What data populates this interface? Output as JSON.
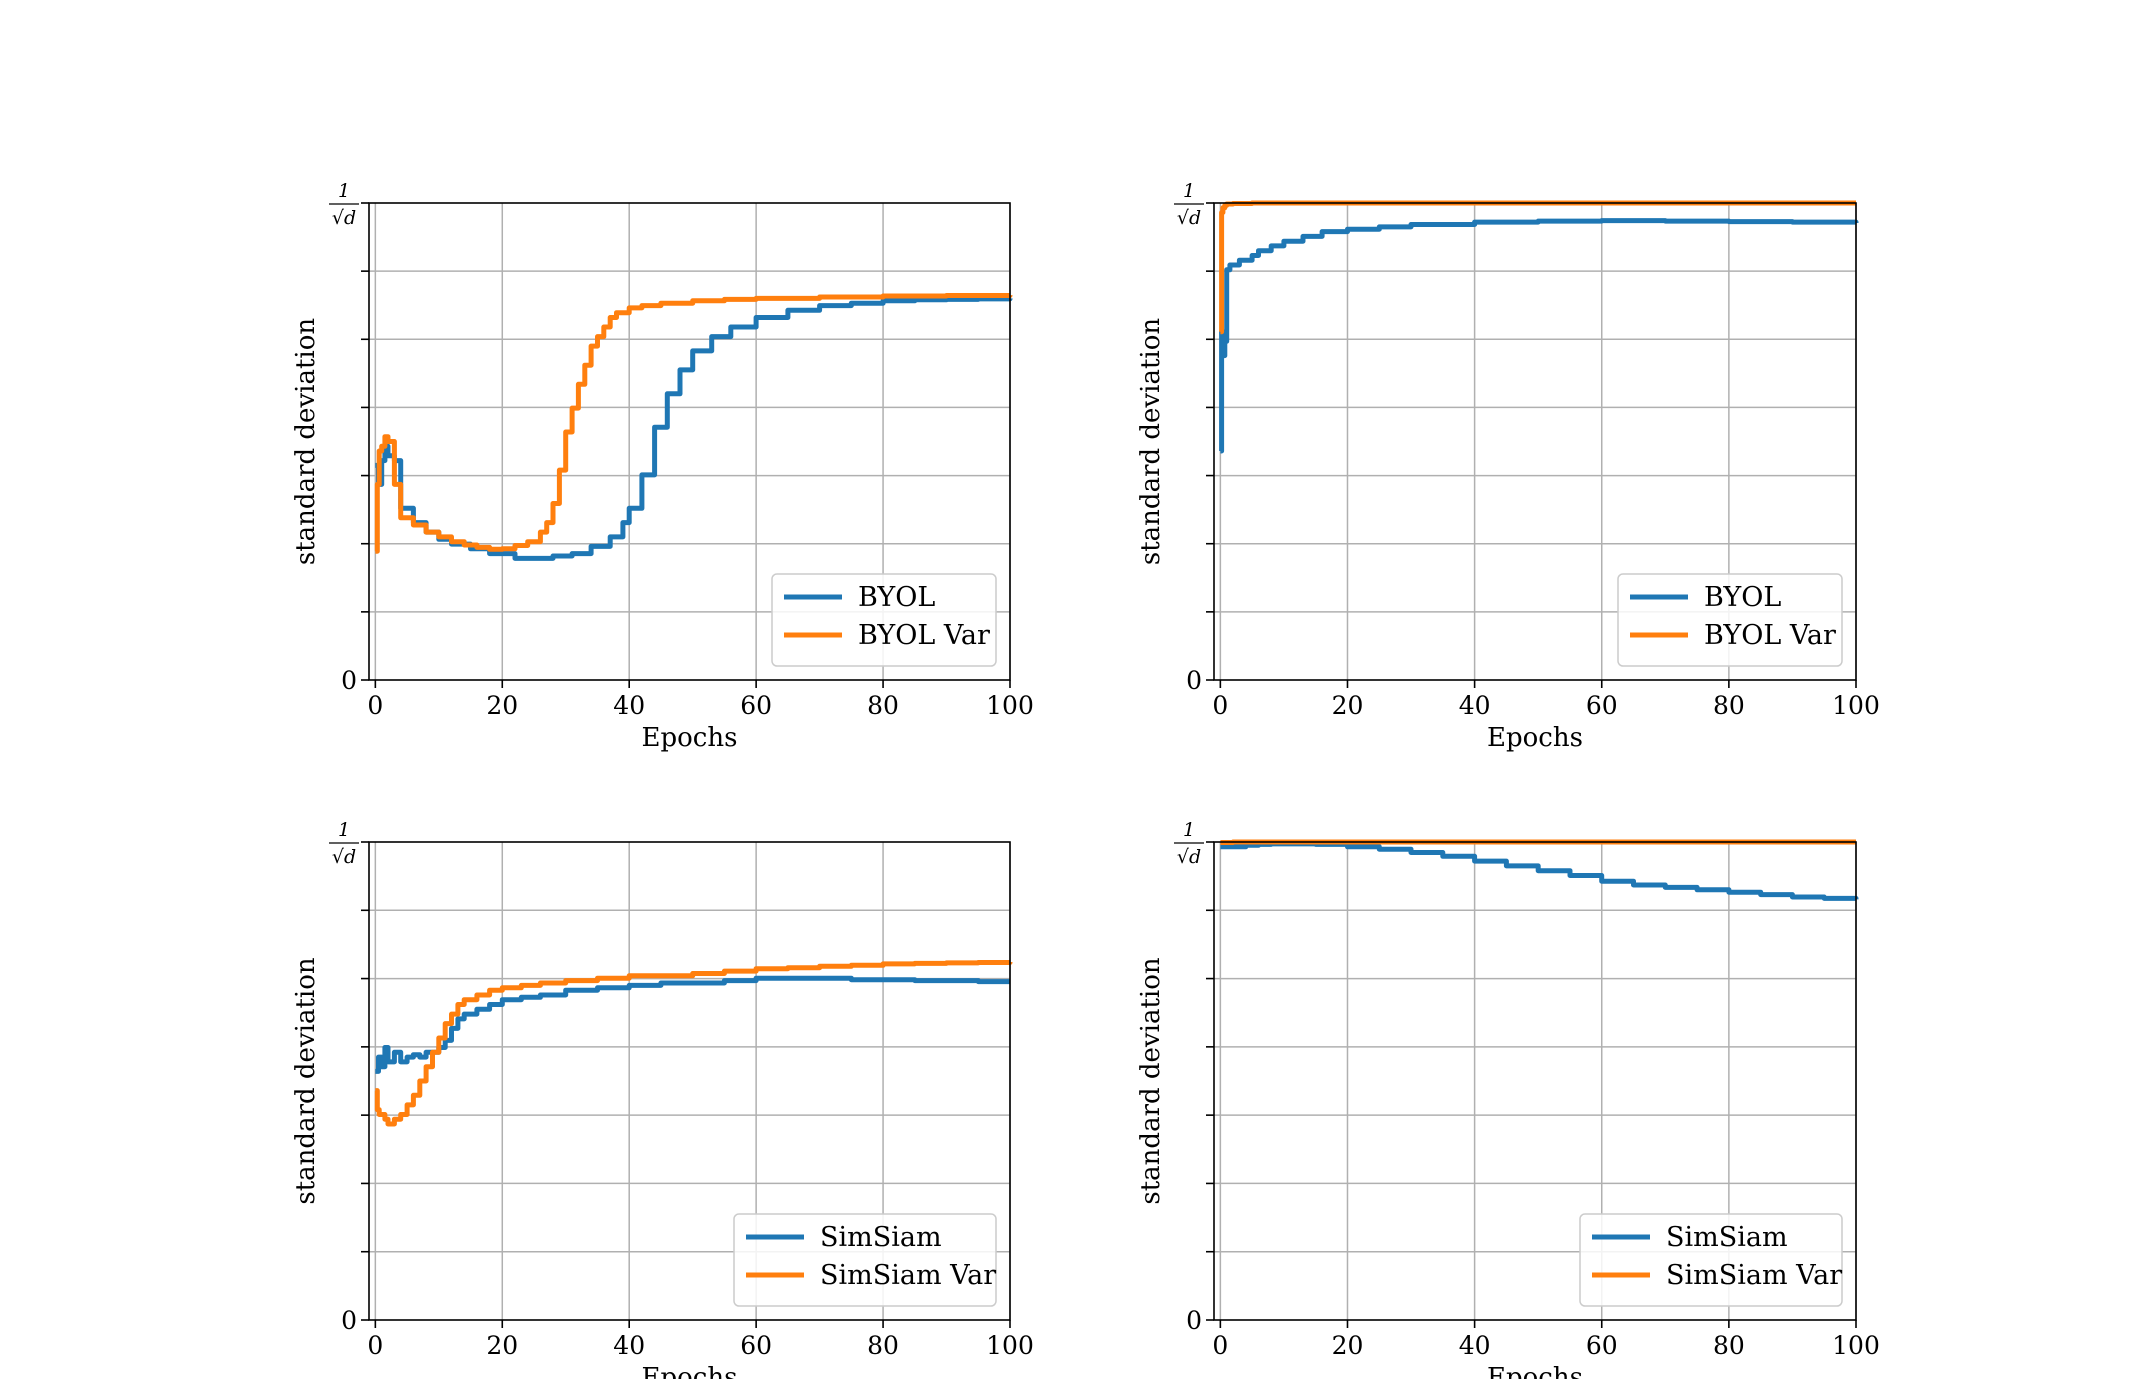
{
  "colors": {
    "blue": "#1f77b4",
    "orange": "#ff7f0e"
  },
  "chart_data": [
    {
      "type": "line",
      "xlabel": "Epochs",
      "ylabel": "standard deviation",
      "xlim": [
        -1,
        100
      ],
      "ylim": [
        0,
        1
      ],
      "xticks": [
        0,
        20,
        40,
        60,
        80,
        100
      ],
      "ytick_labels": {
        "top": "1",
        "top_den": "√d",
        "bottom": "0"
      },
      "grid": true,
      "legend": "lower-right",
      "series": [
        {
          "name": "BYOL",
          "color": "#1f77b4",
          "x": [
            0,
            0.5,
            1,
            1.5,
            2,
            3,
            4,
            6,
            8,
            10,
            12,
            15,
            18,
            22,
            25,
            28,
            31,
            34,
            37,
            39,
            40,
            42,
            44,
            46,
            48,
            50,
            53,
            56,
            60,
            65,
            70,
            75,
            80,
            85,
            90,
            95,
            100
          ],
          "y": [
            0.45,
            0.41,
            0.46,
            0.49,
            0.47,
            0.46,
            0.36,
            0.33,
            0.31,
            0.295,
            0.285,
            0.275,
            0.265,
            0.255,
            0.255,
            0.26,
            0.265,
            0.28,
            0.3,
            0.33,
            0.36,
            0.43,
            0.53,
            0.6,
            0.65,
            0.69,
            0.72,
            0.74,
            0.76,
            0.775,
            0.785,
            0.79,
            0.795,
            0.797,
            0.798,
            0.799,
            0.8
          ]
        },
        {
          "name": "BYOL Var",
          "color": "#ff7f0e",
          "x": [
            0,
            0.3,
            0.6,
            1,
            1.5,
            2,
            3,
            4,
            6,
            8,
            10,
            12,
            14,
            16,
            18,
            20,
            22,
            24,
            26,
            27,
            28,
            29,
            30,
            31,
            32,
            33,
            34,
            35,
            36,
            37,
            38,
            40,
            42,
            45,
            50,
            55,
            60,
            70,
            80,
            90,
            100
          ],
          "y": [
            0.27,
            0.41,
            0.48,
            0.49,
            0.51,
            0.5,
            0.41,
            0.34,
            0.325,
            0.31,
            0.3,
            0.29,
            0.283,
            0.278,
            0.274,
            0.275,
            0.282,
            0.29,
            0.31,
            0.33,
            0.37,
            0.44,
            0.52,
            0.57,
            0.62,
            0.66,
            0.7,
            0.72,
            0.74,
            0.76,
            0.77,
            0.78,
            0.785,
            0.79,
            0.795,
            0.798,
            0.8,
            0.803,
            0.805,
            0.806,
            0.807
          ]
        }
      ]
    },
    {
      "type": "line",
      "xlabel": "Epochs",
      "ylabel": "standard deviation",
      "xlim": [
        -1,
        100
      ],
      "ylim": [
        0,
        1
      ],
      "xticks": [
        0,
        20,
        40,
        60,
        80,
        100
      ],
      "ytick_labels": {
        "top": "1",
        "top_den": "√d",
        "bottom": "0"
      },
      "grid": true,
      "legend": "lower-right",
      "series": [
        {
          "name": "BYOL",
          "color": "#1f77b4",
          "x": [
            0,
            0.2,
            0.4,
            0.7,
            1,
            1.5,
            2,
            3,
            4,
            5,
            6,
            8,
            10,
            13,
            16,
            20,
            25,
            30,
            40,
            50,
            60,
            70,
            80,
            90,
            100
          ],
          "y": [
            0.48,
            0.73,
            0.68,
            0.71,
            0.86,
            0.87,
            0.87,
            0.88,
            0.88,
            0.89,
            0.9,
            0.91,
            0.92,
            0.93,
            0.94,
            0.945,
            0.95,
            0.955,
            0.96,
            0.962,
            0.963,
            0.962,
            0.961,
            0.96,
            0.958
          ]
        },
        {
          "name": "BYOL Var",
          "color": "#ff7f0e",
          "x": [
            0,
            0.2,
            0.4,
            0.7,
            1,
            2,
            5,
            10,
            20,
            40,
            60,
            80,
            100
          ],
          "y": [
            0.73,
            0.98,
            0.99,
            0.995,
            0.998,
            0.999,
            1,
            1,
            1,
            1,
            1,
            1,
            1
          ]
        }
      ]
    },
    {
      "type": "line",
      "xlabel": "Epochs",
      "ylabel": "standard deviation",
      "xlim": [
        -1,
        100
      ],
      "ylim": [
        0,
        1
      ],
      "xticks": [
        0,
        20,
        40,
        60,
        80,
        100
      ],
      "ytick_labels": {
        "top": "1",
        "top_den": "√d",
        "bottom": "0"
      },
      "grid": true,
      "legend": "lower-right",
      "series": [
        {
          "name": "SimSiam",
          "color": "#1f77b4",
          "x": [
            0,
            0.5,
            1,
            1.5,
            2,
            3,
            4,
            5,
            6,
            7,
            8,
            9,
            10,
            11,
            12,
            13,
            14,
            16,
            18,
            20,
            23,
            26,
            30,
            35,
            40,
            45,
            50,
            55,
            60,
            65,
            70,
            75,
            80,
            85,
            90,
            95,
            100
          ],
          "y": [
            0.52,
            0.55,
            0.53,
            0.57,
            0.54,
            0.56,
            0.54,
            0.55,
            0.555,
            0.55,
            0.56,
            0.56,
            0.57,
            0.585,
            0.61,
            0.63,
            0.64,
            0.65,
            0.66,
            0.67,
            0.675,
            0.68,
            0.69,
            0.695,
            0.7,
            0.705,
            0.705,
            0.71,
            0.715,
            0.715,
            0.715,
            0.712,
            0.712,
            0.71,
            0.71,
            0.708,
            0.708
          ]
        },
        {
          "name": "SimSiam Var",
          "color": "#ff7f0e",
          "x": [
            0,
            0.3,
            0.6,
            1,
            1.5,
            2,
            3,
            4,
            5,
            6,
            7,
            8,
            9,
            10,
            11,
            12,
            13,
            14,
            16,
            18,
            20,
            23,
            26,
            30,
            35,
            40,
            45,
            50,
            55,
            60,
            65,
            70,
            75,
            80,
            85,
            90,
            95,
            100
          ],
          "y": [
            0.48,
            0.44,
            0.43,
            0.43,
            0.42,
            0.41,
            0.42,
            0.43,
            0.45,
            0.47,
            0.5,
            0.53,
            0.56,
            0.59,
            0.62,
            0.64,
            0.66,
            0.67,
            0.68,
            0.69,
            0.695,
            0.7,
            0.705,
            0.71,
            0.715,
            0.72,
            0.72,
            0.725,
            0.73,
            0.735,
            0.737,
            0.74,
            0.742,
            0.745,
            0.746,
            0.747,
            0.748,
            0.749
          ]
        }
      ]
    },
    {
      "type": "line",
      "xlabel": "Epochs",
      "ylabel": "standard deviation",
      "xlim": [
        -1,
        100
      ],
      "ylim": [
        0,
        1
      ],
      "xticks": [
        0,
        20,
        40,
        60,
        80,
        100
      ],
      "ytick_labels": {
        "top": "1",
        "top_den": "√d",
        "bottom": "0"
      },
      "grid": true,
      "legend": "lower-right",
      "series": [
        {
          "name": "SimSiam",
          "color": "#1f77b4",
          "x": [
            0,
            2,
            4,
            6,
            8,
            10,
            15,
            20,
            25,
            30,
            35,
            40,
            45,
            50,
            55,
            60,
            65,
            70,
            75,
            80,
            85,
            90,
            95,
            100
          ],
          "y": [
            0.99,
            0.99,
            0.993,
            0.995,
            0.996,
            0.996,
            0.995,
            0.99,
            0.985,
            0.978,
            0.97,
            0.96,
            0.95,
            0.94,
            0.93,
            0.918,
            0.91,
            0.905,
            0.9,
            0.895,
            0.89,
            0.885,
            0.882,
            0.88
          ]
        },
        {
          "name": "SimSiam Var",
          "color": "#ff7f0e",
          "x": [
            0,
            2,
            5,
            10,
            20,
            40,
            60,
            80,
            100
          ],
          "y": [
            0.999,
            1,
            1,
            1,
            1,
            1,
            1,
            1,
            1
          ]
        }
      ]
    }
  ]
}
